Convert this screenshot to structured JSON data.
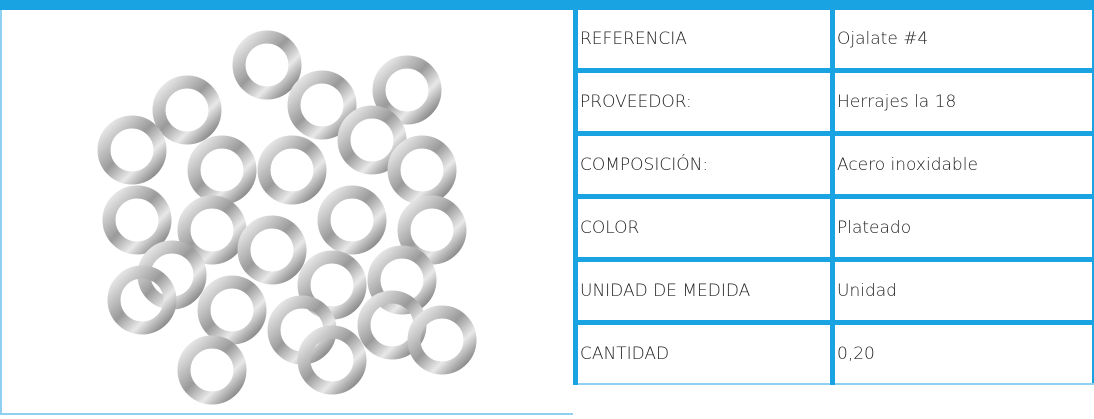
{
  "table": {
    "rows": [
      [
        "REFERENCIA",
        "Ojalate #4"
      ],
      [
        "PROVEEDOR:",
        "Herrajes la 18"
      ],
      [
        "COMPOSICIÓN:",
        "Acero inoxidable"
      ],
      [
        "COLOR",
        "Plateado"
      ],
      [
        "UNIDAD DE MEDIDA",
        "Unidad"
      ],
      [
        "CANTIDAD",
        "0,20"
      ]
    ]
  }
}
